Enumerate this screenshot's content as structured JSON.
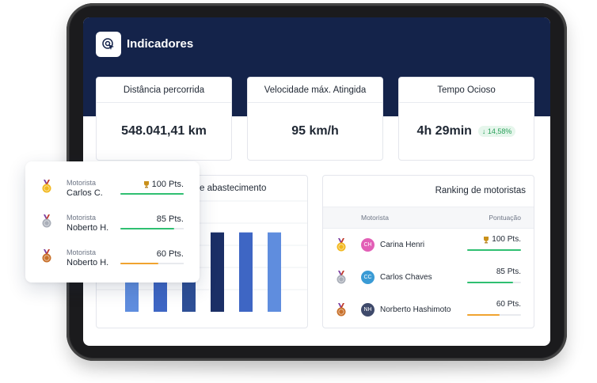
{
  "header": {
    "title": "Indicadores",
    "icon": "target-cursor-icon"
  },
  "kpis": [
    {
      "title": "Distância percorrida",
      "value": "548.041,41 km"
    },
    {
      "title": "Velocidade máx. Atingida",
      "value": "95 km/h"
    },
    {
      "title": "Tempo Ocioso",
      "value": "4h 29min",
      "badge": "↓ 14,58%"
    }
  ],
  "fuel_panel": {
    "title_visible": "e abastecimento"
  },
  "chart_data": {
    "type": "bar",
    "title": "e abastecimento",
    "values": [
      28,
      38,
      39,
      59,
      59,
      59
    ],
    "colors": [
      "#5f8dde",
      "#3e66c4",
      "#2e4f96",
      "#1b2f66",
      "#3e66c4",
      "#5f8dde"
    ],
    "xlabel": "",
    "ylabel": ""
  },
  "ranking": {
    "title": "Ranking de motoristas",
    "col_driver": "Motorista",
    "col_score": "Pontuação",
    "rows": [
      {
        "initials": "CH",
        "name": "Carina Henri",
        "points": "100 Pts.",
        "progress": 1.0,
        "medal": "gold",
        "trophy": true,
        "avatar_color": "#e25fb6",
        "bar_color": "#2fbf71"
      },
      {
        "initials": "CC",
        "name": "Carlos Chaves",
        "points": "85 Pts.",
        "progress": 0.85,
        "medal": "silver",
        "trophy": false,
        "avatar_color": "#3a9bd5",
        "bar_color": "#2fbf71"
      },
      {
        "initials": "NH",
        "name": "Norberto Hashimoto",
        "points": "60 Pts.",
        "progress": 0.6,
        "medal": "bronze",
        "trophy": false,
        "avatar_color": "#3f4a6b",
        "bar_color": "#f0a32f"
      }
    ]
  },
  "floating_card": {
    "rows": [
      {
        "label": "Motorista",
        "name": "Carlos C.",
        "points": "100 Pts.",
        "progress": 1.0,
        "medal": "gold",
        "trophy": true,
        "bar_color": "#2fbf71"
      },
      {
        "label": "Motorista",
        "name": "Noberto H.",
        "points": "85 Pts.",
        "progress": 0.85,
        "medal": "silver",
        "trophy": false,
        "bar_color": "#2fbf71"
      },
      {
        "label": "Motorista",
        "name": "Noberto H.",
        "points": "60 Pts.",
        "progress": 0.6,
        "medal": "bronze",
        "trophy": false,
        "bar_color": "#f0a32f"
      }
    ]
  },
  "colors": {
    "header_bg": "#14234a",
    "gold": "#f2b81f",
    "silver": "#a9aeb8",
    "bronze": "#c8702a"
  }
}
